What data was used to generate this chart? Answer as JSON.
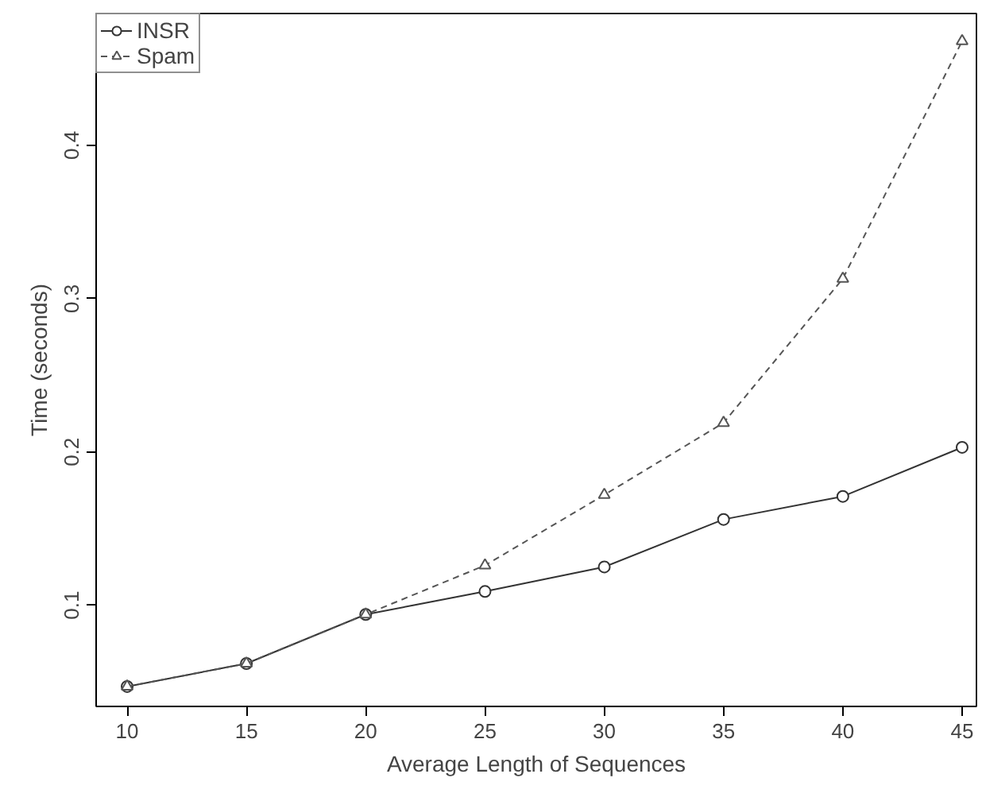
{
  "chart_data": {
    "type": "line",
    "xlabel": "Average Length of Sequences",
    "ylabel": "Time (seconds)",
    "x": [
      10,
      15,
      20,
      25,
      30,
      35,
      40,
      45
    ],
    "series": [
      {
        "name": "INSR",
        "color": "#333333",
        "marker": "circle",
        "line_style": "solid",
        "values": [
          0.047,
          0.062,
          0.094,
          0.109,
          0.125,
          0.156,
          0.171,
          0.203
        ]
      },
      {
        "name": "Spam",
        "color": "#555555",
        "marker": "triangle",
        "line_style": "dashed",
        "values": [
          0.047,
          0.062,
          0.094,
          0.126,
          0.172,
          0.219,
          0.313,
          0.468
        ]
      }
    ],
    "xlim": [
      8.7,
      45.6
    ],
    "ylim": [
      0.034,
      0.486
    ],
    "xticks": [
      10,
      15,
      20,
      25,
      30,
      35,
      40,
      45
    ],
    "yticks": [
      0.1,
      0.2,
      0.3,
      0.4
    ],
    "grid": false,
    "legend": "top left"
  }
}
